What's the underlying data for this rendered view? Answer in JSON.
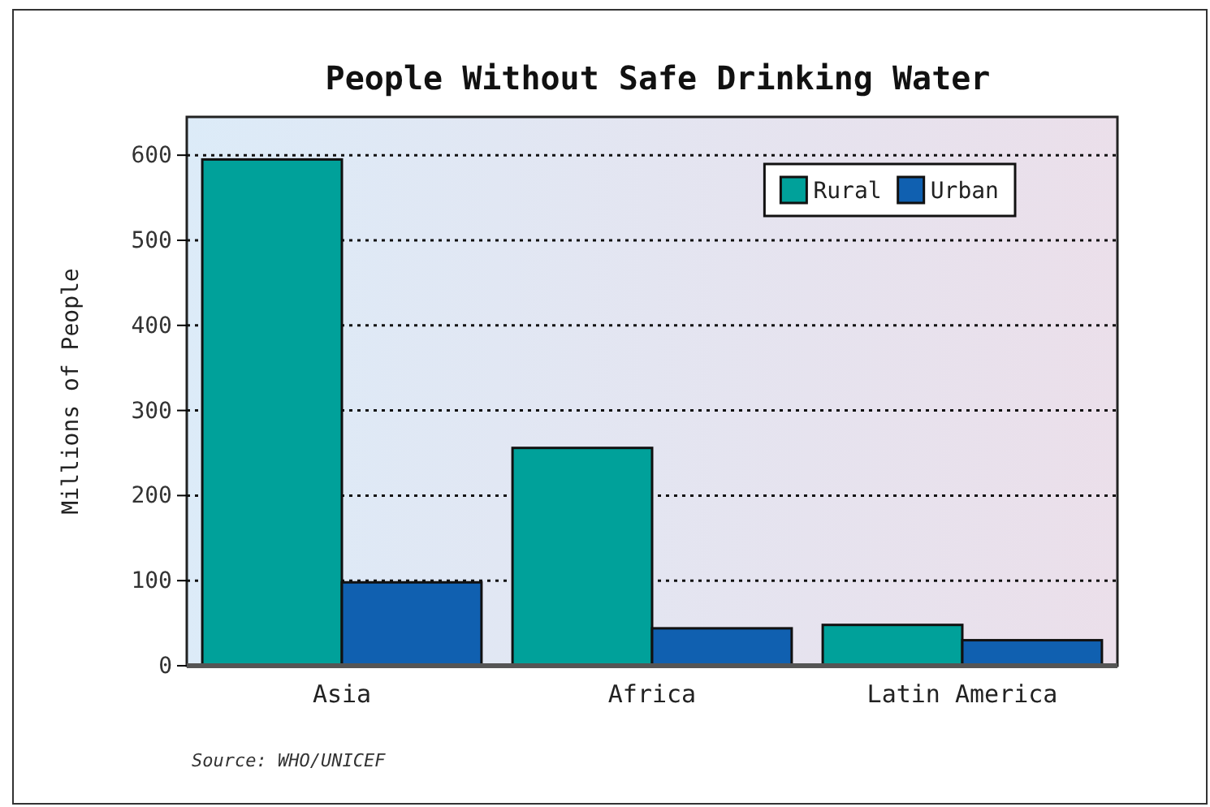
{
  "chart_data": {
    "type": "bar",
    "title": "People Without Safe Drinking Water",
    "ylabel": "Millions of People",
    "categories": [
      "Asia",
      "Africa",
      "Latin America"
    ],
    "series": [
      {
        "name": "Rural",
        "color": "#00a19a",
        "values": [
          595,
          256,
          48
        ]
      },
      {
        "name": "Urban",
        "color": "#1060b0",
        "values": [
          98,
          44,
          30
        ]
      }
    ],
    "ylim": [
      0,
      645
    ],
    "yticks": [
      0,
      100,
      200,
      300,
      400,
      500,
      600
    ],
    "grid": "y",
    "legend": "top right",
    "annotations": [
      "Source: WHO/UNICEF"
    ]
  }
}
